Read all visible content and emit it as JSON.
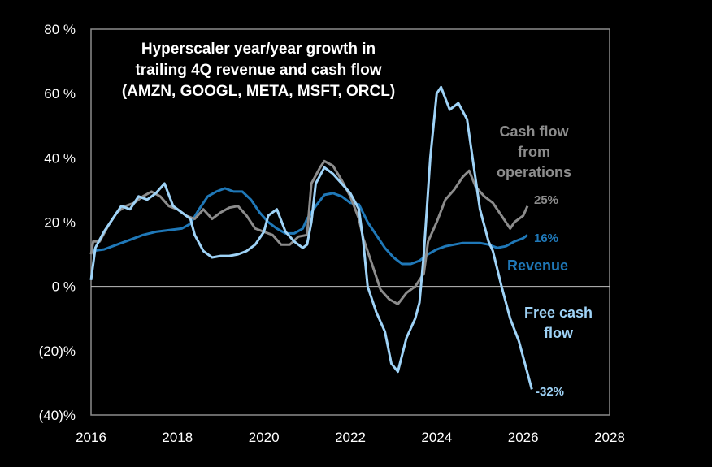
{
  "chart_data": {
    "type": "line",
    "title": [
      "Hyperscaler year/year growth in",
      "trailing 4Q revenue and cash flow",
      "(AMZN, GOOGL, META, MSFT, ORCL)"
    ],
    "xlabel": "",
    "ylabel": "",
    "xlim": [
      2016,
      2028
    ],
    "ylim": [
      -40,
      80
    ],
    "xticks": [
      2016,
      2018,
      2020,
      2022,
      2024,
      2026,
      2028
    ],
    "xtick_labels": [
      "2016",
      "2018",
      "2020",
      "2022",
      "2024",
      "2026",
      "2028"
    ],
    "yticks": [
      80,
      60,
      40,
      20,
      0,
      -20,
      -40
    ],
    "ytick_labels": [
      "80 %",
      "60 %",
      "40 %",
      "20 %",
      "0 %",
      "(20)%",
      "(40)%"
    ],
    "zero_line": true,
    "grid": false,
    "legend": "inline-labels",
    "series": [
      {
        "name": "Revenue",
        "label_lines": [
          "Revenue"
        ],
        "color": "#1f78b8",
        "end_label": "16%",
        "points": [
          [
            2016.0,
            11
          ],
          [
            2016.3,
            11.5
          ],
          [
            2016.6,
            13
          ],
          [
            2016.9,
            14.5
          ],
          [
            2017.2,
            16
          ],
          [
            2017.5,
            17
          ],
          [
            2017.8,
            17.5
          ],
          [
            2018.1,
            18
          ],
          [
            2018.3,
            19.5
          ],
          [
            2018.5,
            24
          ],
          [
            2018.7,
            28
          ],
          [
            2018.9,
            29.5
          ],
          [
            2019.1,
            30.5
          ],
          [
            2019.3,
            29.5
          ],
          [
            2019.5,
            29.5
          ],
          [
            2019.7,
            27
          ],
          [
            2019.9,
            23
          ],
          [
            2020.1,
            20
          ],
          [
            2020.3,
            18
          ],
          [
            2020.5,
            16.5
          ],
          [
            2020.7,
            16.5
          ],
          [
            2020.9,
            18
          ],
          [
            2021.0,
            21
          ],
          [
            2021.2,
            25
          ],
          [
            2021.4,
            28.5
          ],
          [
            2021.6,
            29
          ],
          [
            2021.8,
            28
          ],
          [
            2022.0,
            26
          ],
          [
            2022.2,
            25.5
          ],
          [
            2022.4,
            20
          ],
          [
            2022.6,
            16
          ],
          [
            2022.8,
            12
          ],
          [
            2023.0,
            9
          ],
          [
            2023.2,
            7
          ],
          [
            2023.4,
            7
          ],
          [
            2023.6,
            8
          ],
          [
            2023.8,
            10
          ],
          [
            2024.0,
            11.5
          ],
          [
            2024.2,
            12.5
          ],
          [
            2024.4,
            13
          ],
          [
            2024.6,
            13.5
          ],
          [
            2024.8,
            13.5
          ],
          [
            2025.0,
            13.5
          ],
          [
            2025.2,
            13
          ],
          [
            2025.4,
            12
          ],
          [
            2025.6,
            12.5
          ],
          [
            2025.8,
            14
          ],
          [
            2026.0,
            15
          ],
          [
            2026.1,
            16
          ]
        ]
      },
      {
        "name": "Cash flow from operations",
        "label_lines": [
          "Cash flow",
          "from",
          "operations"
        ],
        "color": "#8c8c8c",
        "end_label": "25%",
        "points": [
          [
            2016.0,
            10
          ],
          [
            2016.05,
            14
          ],
          [
            2016.2,
            14
          ],
          [
            2016.4,
            19
          ],
          [
            2016.6,
            23
          ],
          [
            2016.8,
            25
          ],
          [
            2017.0,
            26
          ],
          [
            2017.2,
            28
          ],
          [
            2017.4,
            29.5
          ],
          [
            2017.6,
            28
          ],
          [
            2017.8,
            25
          ],
          [
            2018.0,
            24
          ],
          [
            2018.2,
            22
          ],
          [
            2018.4,
            21
          ],
          [
            2018.6,
            24
          ],
          [
            2018.8,
            21
          ],
          [
            2019.0,
            23
          ],
          [
            2019.2,
            24.5
          ],
          [
            2019.4,
            25
          ],
          [
            2019.6,
            22
          ],
          [
            2019.8,
            18
          ],
          [
            2020.0,
            17
          ],
          [
            2020.2,
            16
          ],
          [
            2020.4,
            13
          ],
          [
            2020.6,
            13
          ],
          [
            2020.8,
            15.5
          ],
          [
            2021.0,
            16
          ],
          [
            2021.1,
            32
          ],
          [
            2021.3,
            37
          ],
          [
            2021.4,
            39
          ],
          [
            2021.6,
            37.5
          ],
          [
            2021.8,
            33
          ],
          [
            2022.0,
            28
          ],
          [
            2022.2,
            21
          ],
          [
            2022.3,
            15
          ],
          [
            2022.5,
            7
          ],
          [
            2022.7,
            -1
          ],
          [
            2022.9,
            -4
          ],
          [
            2023.1,
            -5.5
          ],
          [
            2023.3,
            -2
          ],
          [
            2023.5,
            0
          ],
          [
            2023.7,
            4
          ],
          [
            2023.8,
            14
          ],
          [
            2024.0,
            20
          ],
          [
            2024.2,
            27
          ],
          [
            2024.4,
            30
          ],
          [
            2024.6,
            34
          ],
          [
            2024.75,
            36
          ],
          [
            2024.9,
            31
          ],
          [
            2025.1,
            28
          ],
          [
            2025.3,
            26
          ],
          [
            2025.5,
            22
          ],
          [
            2025.7,
            18
          ],
          [
            2025.8,
            20
          ],
          [
            2026.0,
            22
          ],
          [
            2026.1,
            25
          ]
        ]
      },
      {
        "name": "Free cash flow",
        "label_lines": [
          "Free cash",
          "flow"
        ],
        "color": "#9fd3f7",
        "end_label": "-32%",
        "points": [
          [
            2016.0,
            2
          ],
          [
            2016.1,
            12
          ],
          [
            2016.3,
            17
          ],
          [
            2016.5,
            21
          ],
          [
            2016.7,
            25
          ],
          [
            2016.9,
            24
          ],
          [
            2017.1,
            28
          ],
          [
            2017.3,
            27
          ],
          [
            2017.5,
            29
          ],
          [
            2017.7,
            32
          ],
          [
            2017.9,
            25
          ],
          [
            2018.1,
            23
          ],
          [
            2018.3,
            21
          ],
          [
            2018.4,
            16
          ],
          [
            2018.6,
            11
          ],
          [
            2018.8,
            9
          ],
          [
            2019.0,
            9.5
          ],
          [
            2019.2,
            9.5
          ],
          [
            2019.4,
            10
          ],
          [
            2019.6,
            11
          ],
          [
            2019.8,
            13
          ],
          [
            2020.0,
            17
          ],
          [
            2020.1,
            22
          ],
          [
            2020.3,
            24
          ],
          [
            2020.5,
            17
          ],
          [
            2020.7,
            14
          ],
          [
            2020.9,
            12
          ],
          [
            2021.0,
            13
          ],
          [
            2021.1,
            20
          ],
          [
            2021.2,
            32
          ],
          [
            2021.4,
            37
          ],
          [
            2021.6,
            35
          ],
          [
            2021.8,
            32
          ],
          [
            2022.0,
            29
          ],
          [
            2022.2,
            24
          ],
          [
            2022.3,
            14
          ],
          [
            2022.4,
            0
          ],
          [
            2022.6,
            -8
          ],
          [
            2022.8,
            -14
          ],
          [
            2022.95,
            -24
          ],
          [
            2023.1,
            -26.5
          ],
          [
            2023.3,
            -16
          ],
          [
            2023.5,
            -10
          ],
          [
            2023.6,
            -5
          ],
          [
            2023.7,
            10
          ],
          [
            2023.85,
            40
          ],
          [
            2024.0,
            60
          ],
          [
            2024.1,
            62
          ],
          [
            2024.3,
            55
          ],
          [
            2024.5,
            57
          ],
          [
            2024.7,
            52
          ],
          [
            2024.85,
            38
          ],
          [
            2025.0,
            24
          ],
          [
            2025.2,
            14
          ],
          [
            2025.3,
            11
          ],
          [
            2025.5,
            0
          ],
          [
            2025.7,
            -10
          ],
          [
            2025.9,
            -17
          ],
          [
            2026.0,
            -22
          ],
          [
            2026.1,
            -27
          ],
          [
            2026.2,
            -32
          ]
        ]
      }
    ]
  }
}
